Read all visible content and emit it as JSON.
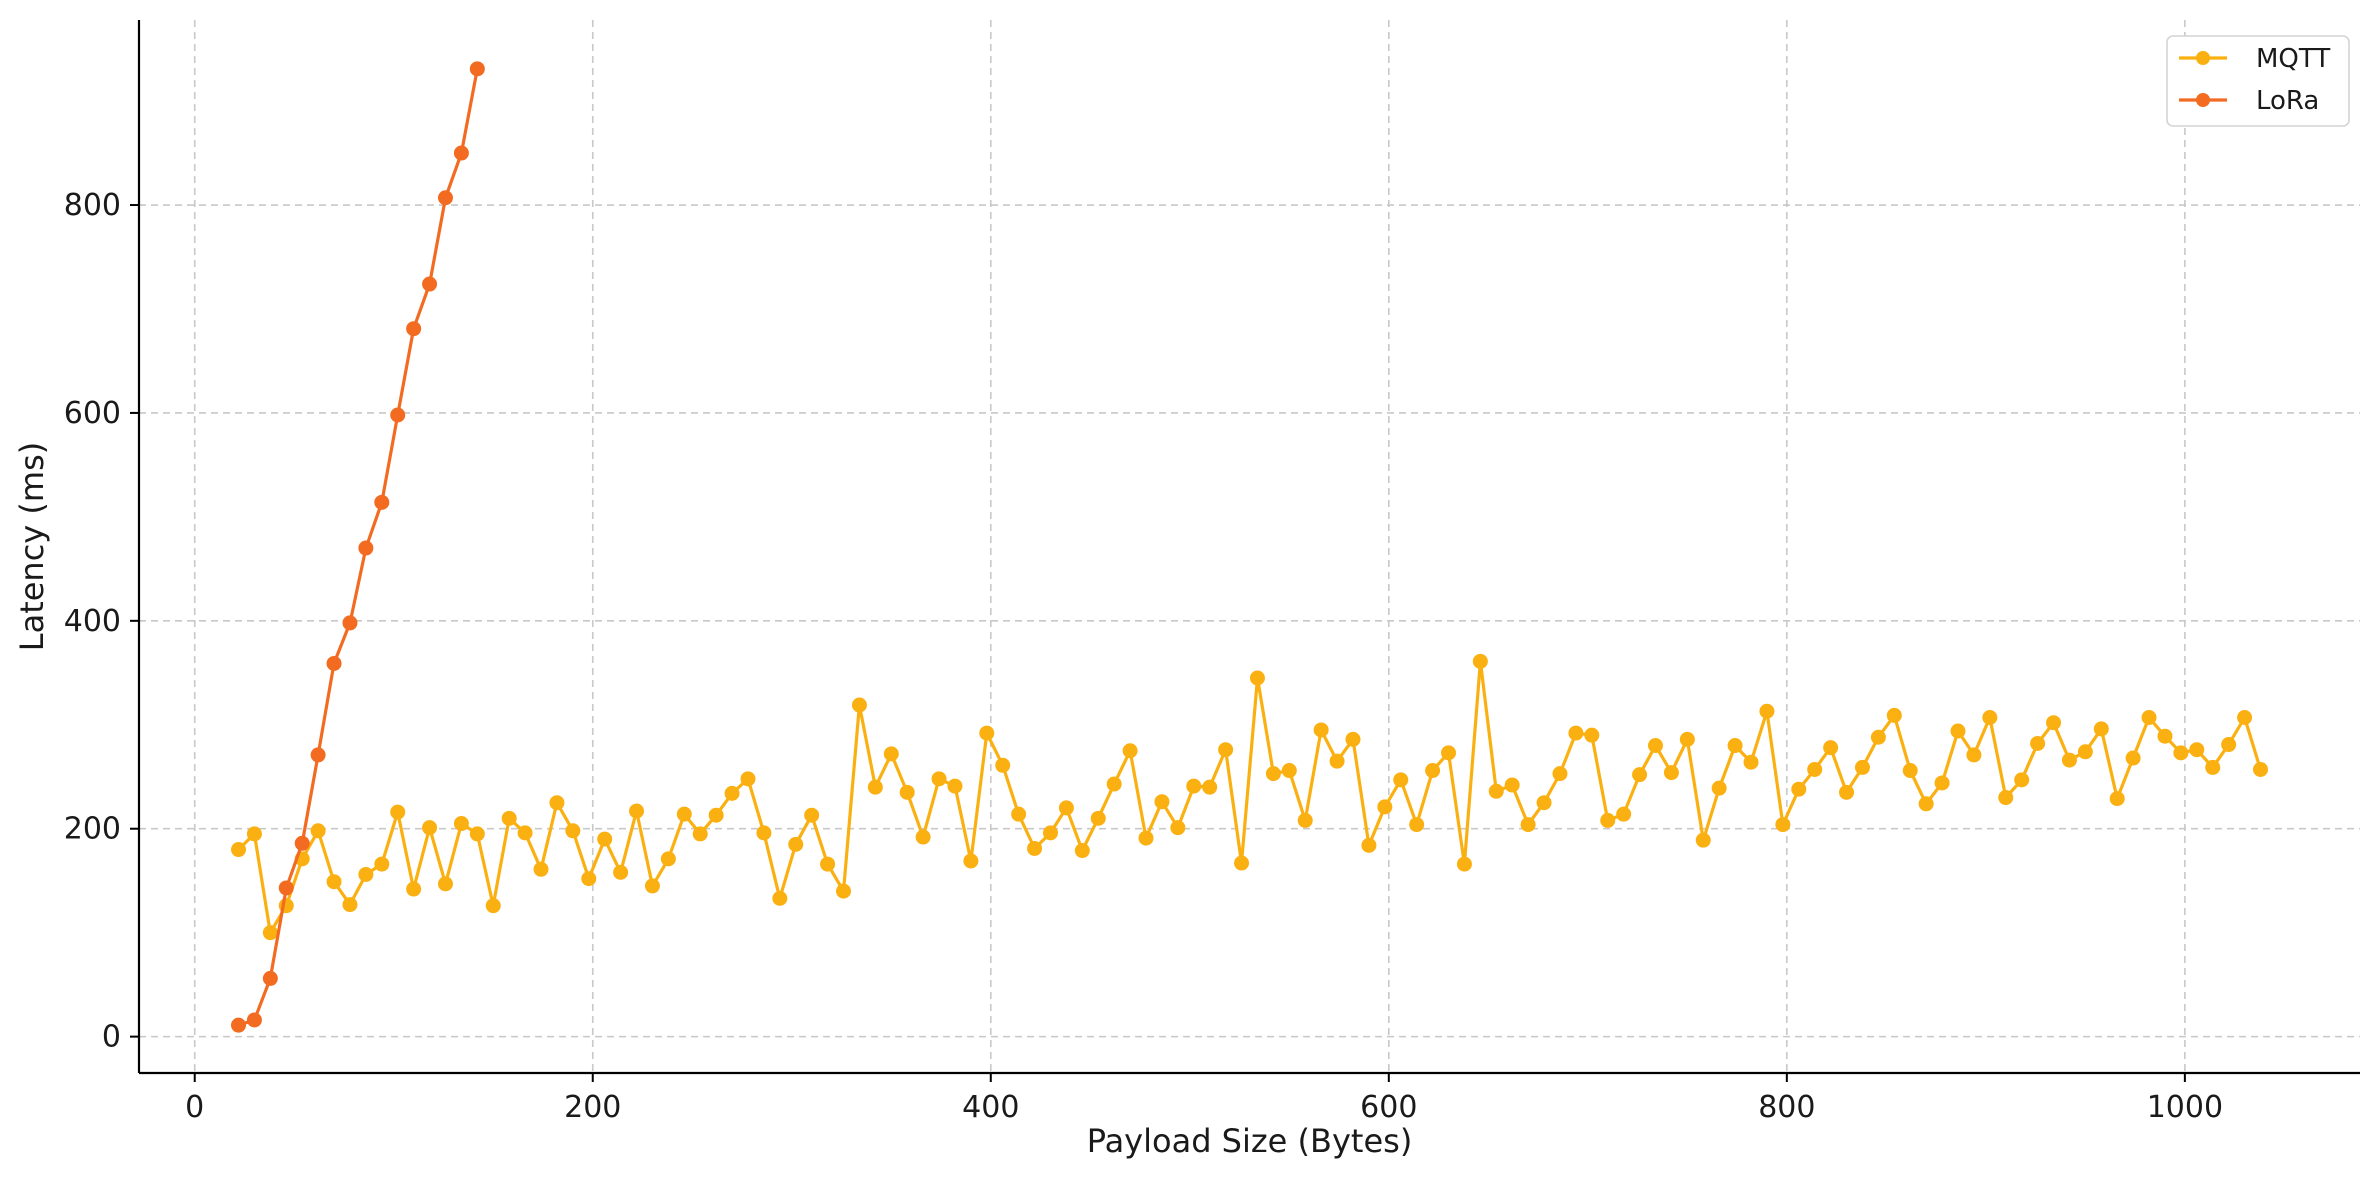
{
  "chart_data": {
    "type": "line",
    "title": "",
    "xlabel": "Payload Size (Bytes)",
    "ylabel": "Latency (ms)",
    "xlim": [
      -28,
      1088
    ],
    "ylim": [
      -35,
      978
    ],
    "xticks": [
      0,
      200,
      400,
      600,
      800,
      1000
    ],
    "xtick_labels": [
      "0",
      "200",
      "400",
      "600",
      "800",
      "1000"
    ],
    "yticks": [
      0,
      200,
      400,
      600,
      800
    ],
    "ytick_labels": [
      "0",
      "200",
      "400",
      "600",
      "800"
    ],
    "grid": true,
    "legend_position": "top-right",
    "series": [
      {
        "name": "MQTT",
        "color": "#FBB012",
        "x": [
          22,
          30,
          38,
          46,
          54,
          62,
          70,
          78,
          86,
          94,
          102,
          110,
          118,
          126,
          134,
          142,
          150,
          158,
          166,
          174,
          182,
          190,
          198,
          206,
          214,
          222,
          230,
          238,
          246,
          254,
          262,
          270,
          278,
          286,
          294,
          302,
          310,
          318,
          326,
          334,
          342,
          350,
          358,
          366,
          374,
          382,
          390,
          398,
          406,
          414,
          422,
          430,
          438,
          446,
          454,
          462,
          470,
          478,
          486,
          494,
          502,
          510,
          518,
          526,
          534,
          542,
          550,
          558,
          566,
          574,
          582,
          590,
          598,
          606,
          614,
          622,
          630,
          638,
          646,
          654,
          662,
          670,
          678,
          686,
          694,
          702,
          710,
          718,
          726,
          734,
          742,
          750,
          758,
          766,
          774,
          782,
          790,
          798,
          806,
          814,
          822,
          830,
          838,
          846,
          854,
          862,
          870,
          878,
          886,
          894,
          902,
          910,
          918,
          926,
          934,
          942,
          950,
          958,
          966,
          974,
          982,
          990,
          998,
          1006,
          1014,
          1022,
          1030,
          1038
        ],
        "y": [
          180,
          195,
          100,
          126,
          171,
          198,
          149,
          127,
          156,
          166,
          216,
          142,
          201,
          147,
          205,
          195,
          126,
          210,
          196,
          161,
          225,
          198,
          152,
          190,
          158,
          217,
          145,
          171,
          214,
          195,
          213,
          234,
          248,
          196,
          133,
          185,
          213,
          166,
          140,
          319,
          240,
          272,
          235,
          192,
          248,
          241,
          169,
          292,
          261,
          214,
          181,
          196,
          220,
          179,
          210,
          243,
          275,
          191,
          226,
          201,
          241,
          240,
          276,
          167,
          345,
          253,
          256,
          208,
          295,
          265,
          286,
          184,
          221,
          247,
          204,
          256,
          273,
          166,
          361,
          236,
          242,
          204,
          225,
          253,
          292,
          290,
          208,
          214,
          252,
          280,
          254,
          286,
          189,
          239,
          280,
          264,
          313,
          204,
          238,
          257,
          278,
          235,
          259,
          288,
          309,
          256,
          224,
          244,
          294,
          271,
          307,
          230,
          247,
          282,
          302,
          266,
          274,
          296,
          229,
          268,
          307,
          289,
          273,
          276,
          259,
          281,
          307,
          257
        ]
      },
      {
        "name": "LoRa",
        "color": "#F26B21",
        "x": [
          22,
          30,
          38,
          46,
          54,
          62,
          70,
          78,
          86,
          94,
          102,
          110,
          118,
          126,
          134,
          142
        ],
        "y": [
          11,
          16,
          56,
          143,
          186,
          271,
          359,
          398,
          470,
          514,
          598,
          681,
          724,
          807,
          850,
          931
        ]
      }
    ]
  }
}
